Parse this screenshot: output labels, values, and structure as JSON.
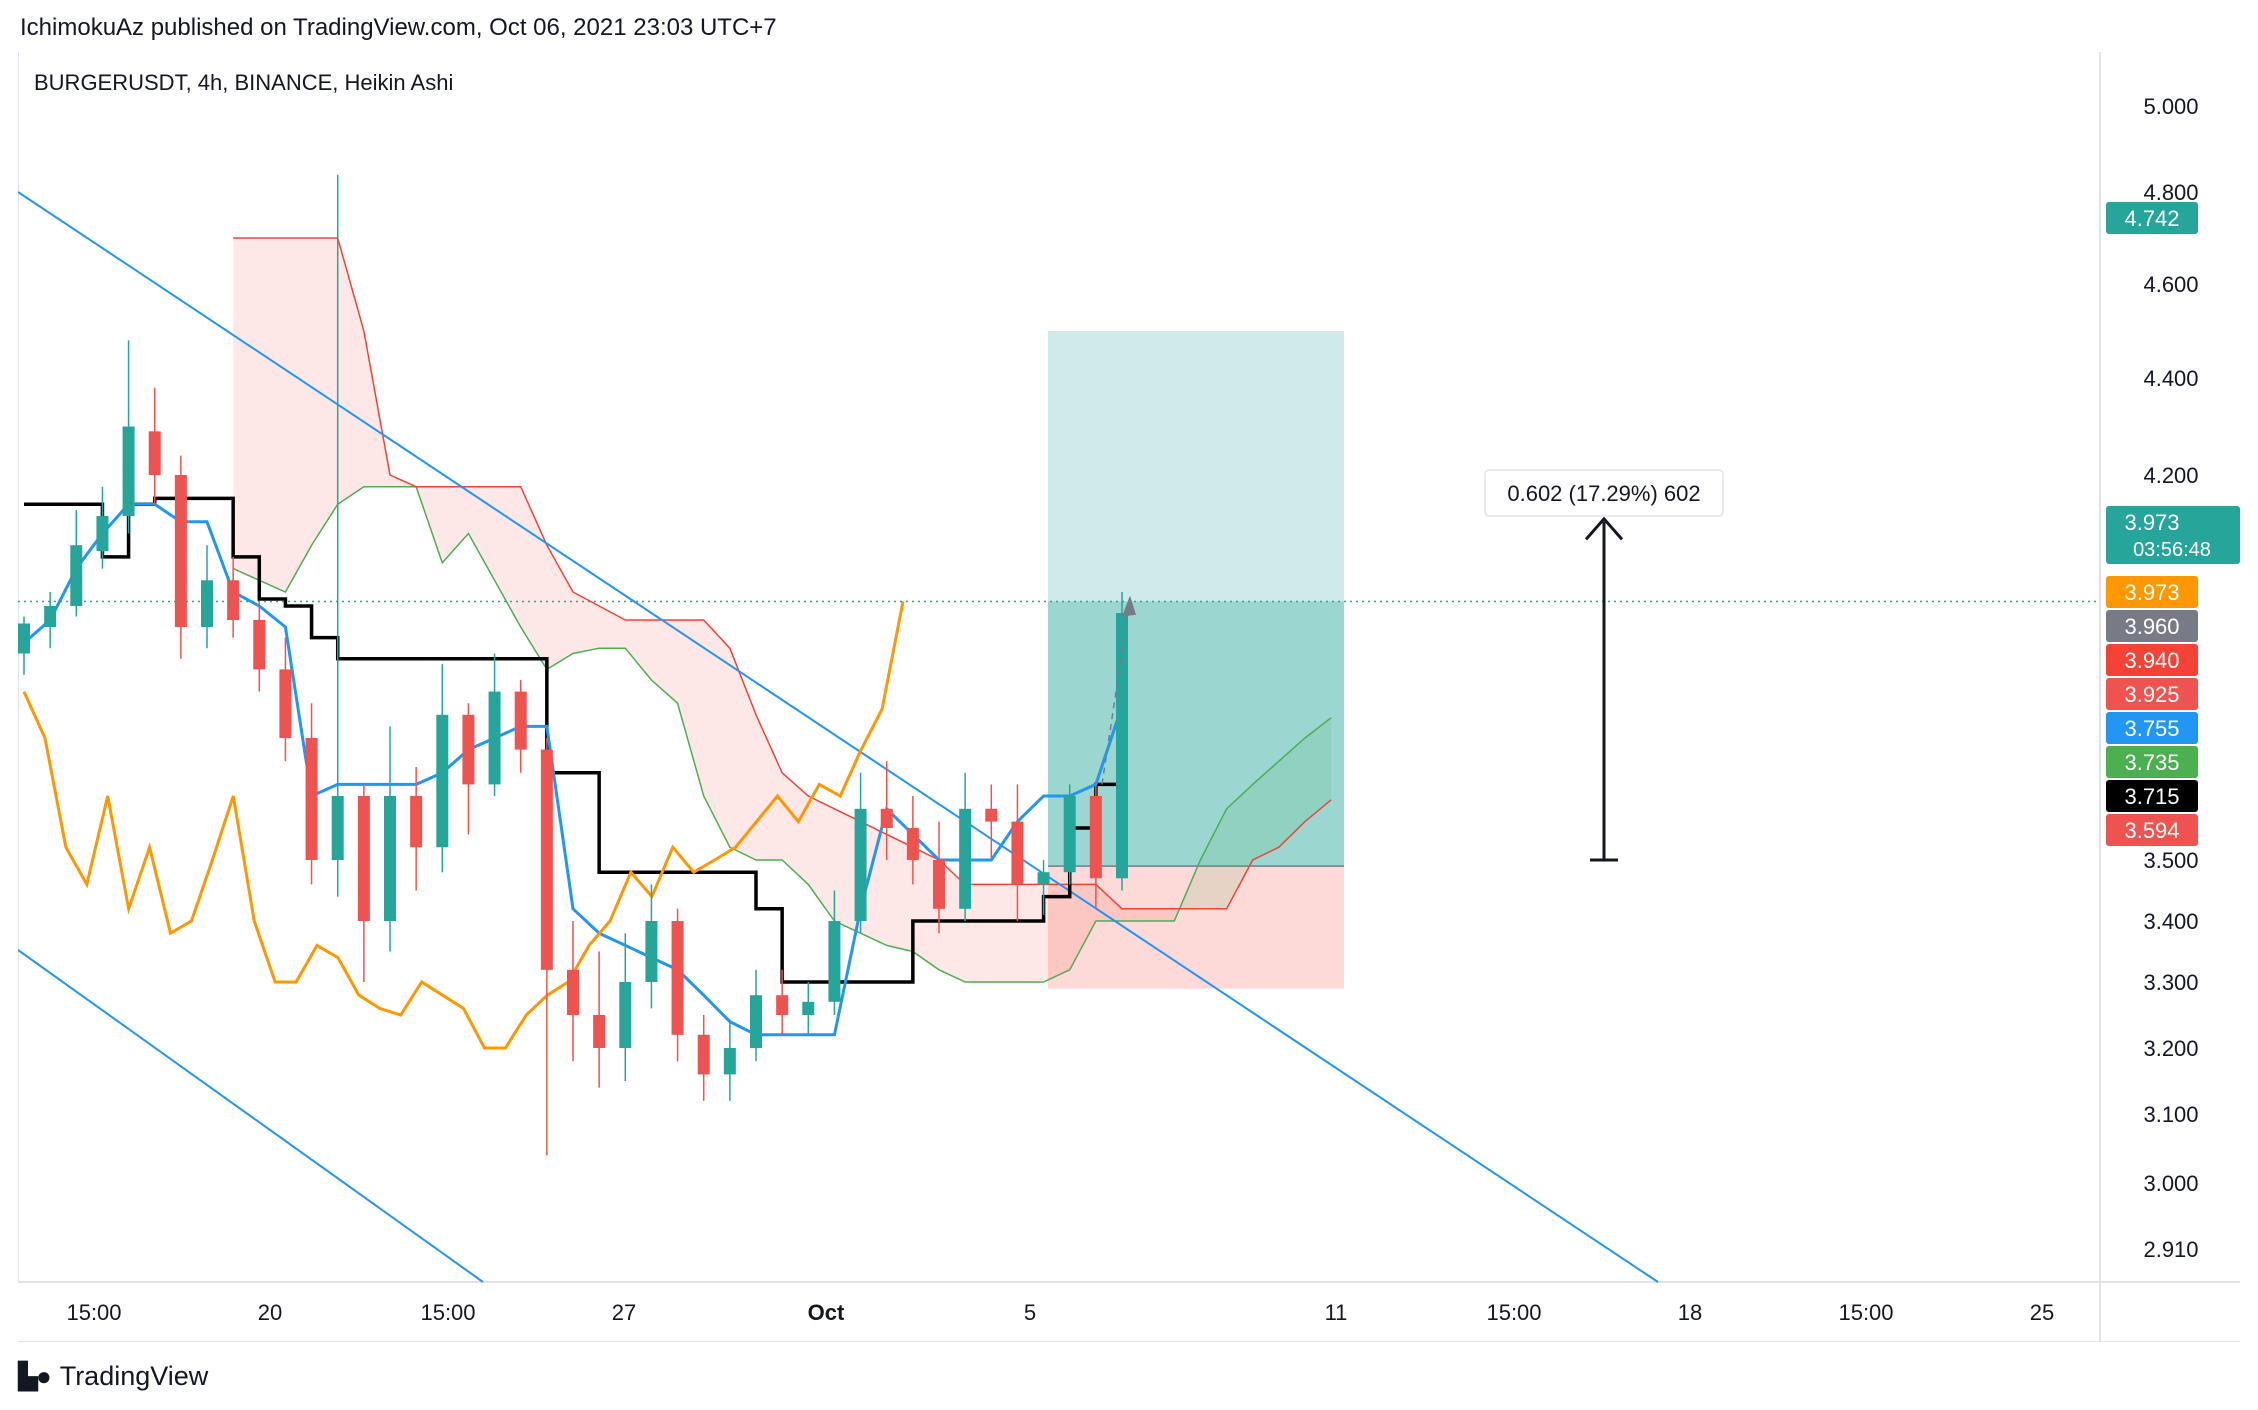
{
  "header": {
    "published": "IchimokuAz published on TradingView.com, Oct 06, 2021 23:03 UTC+7"
  },
  "footer": {
    "brand": "TradingView",
    "logo_icon": "tradingview-logo-icon"
  },
  "colors": {
    "up": "#26a69a",
    "down": "#ef5350",
    "tenkan": "#2196f3",
    "kijun": "#000000",
    "chikou": "#ff9800",
    "span_a": "#4caf50",
    "span_b": "#f44336",
    "trendline": "#2196f3",
    "target_zone": "#26a69a",
    "stop_zone": "#f44336"
  },
  "chart_data": {
    "type": "candlestick",
    "title": "BURGERUSDT, 4h, BINANCE, Heikin Ashi",
    "symbol": "BURGERUSDT",
    "interval": "4h",
    "exchange": "BINANCE",
    "style": "Heikin Ashi",
    "ylim": [
      2.85,
      5.1
    ],
    "y_ticks": [
      "5.000",
      "4.800",
      "4.600",
      "4.400",
      "4.200",
      "3.500",
      "3.400",
      "3.300",
      "3.200",
      "3.100",
      "3.000",
      "2.910"
    ],
    "x_ticks": [
      "15:00",
      "20",
      "15:00",
      "27",
      "Oct",
      "5",
      "11",
      "15:00",
      "18",
      "15:00",
      "25"
    ],
    "price_labels": [
      {
        "value": "4.742",
        "color": "#26a69a"
      },
      {
        "value": "3.973",
        "sub": "03:56:48",
        "color": "#26a69a"
      },
      {
        "value": "3.973",
        "color": "#ff9800"
      },
      {
        "value": "3.960",
        "color": "#787b86"
      },
      {
        "value": "3.940",
        "color": "#f44336"
      },
      {
        "value": "3.925",
        "color": "#ef5350"
      },
      {
        "value": "3.755",
        "color": "#2196f3"
      },
      {
        "value": "3.735",
        "color": "#4caf50"
      },
      {
        "value": "3.715",
        "color": "#000000"
      },
      {
        "value": "3.594",
        "color": "#ef5350"
      }
    ],
    "measure_label": "0.602 (17.29%) 602",
    "position": {
      "entry": 3.49,
      "target": 4.5,
      "stop": 3.29
    },
    "last_price": 3.973,
    "candles": [
      {
        "o": 3.85,
        "h": 3.93,
        "l": 3.81,
        "c": 3.91
      },
      {
        "o": 3.9,
        "h": 4.0,
        "l": 3.86,
        "c": 3.96
      },
      {
        "o": 3.96,
        "h": 4.14,
        "l": 3.93,
        "c": 4.08
      },
      {
        "o": 4.07,
        "h": 4.18,
        "l": 4.04,
        "c": 4.13
      },
      {
        "o": 4.13,
        "h": 4.48,
        "l": 4.1,
        "c": 4.3
      },
      {
        "o": 4.29,
        "h": 4.38,
        "l": 4.15,
        "c": 4.2
      },
      {
        "o": 4.2,
        "h": 4.24,
        "l": 3.84,
        "c": 3.9
      },
      {
        "o": 3.9,
        "h": 4.08,
        "l": 3.86,
        "c": 4.02
      },
      {
        "o": 4.02,
        "h": 4.06,
        "l": 3.88,
        "c": 3.92
      },
      {
        "o": 3.92,
        "h": 3.97,
        "l": 3.78,
        "c": 3.82
      },
      {
        "o": 3.82,
        "h": 3.88,
        "l": 3.66,
        "c": 3.7
      },
      {
        "o": 3.7,
        "h": 3.76,
        "l": 3.46,
        "c": 3.5
      },
      {
        "o": 3.5,
        "h": 4.84,
        "l": 3.44,
        "c": 3.6
      },
      {
        "o": 3.6,
        "h": 3.62,
        "l": 3.3,
        "c": 3.4
      },
      {
        "o": 3.4,
        "h": 3.72,
        "l": 3.35,
        "c": 3.6
      },
      {
        "o": 3.6,
        "h": 3.65,
        "l": 3.45,
        "c": 3.52
      },
      {
        "o": 3.52,
        "h": 3.83,
        "l": 3.48,
        "c": 3.74
      },
      {
        "o": 3.74,
        "h": 3.76,
        "l": 3.54,
        "c": 3.62
      },
      {
        "o": 3.62,
        "h": 3.85,
        "l": 3.6,
        "c": 3.78
      },
      {
        "o": 3.78,
        "h": 3.8,
        "l": 3.64,
        "c": 3.68
      },
      {
        "o": 3.68,
        "h": 3.7,
        "l": 3.04,
        "c": 3.32
      },
      {
        "o": 3.32,
        "h": 3.4,
        "l": 3.18,
        "c": 3.25
      },
      {
        "o": 3.25,
        "h": 3.35,
        "l": 3.14,
        "c": 3.2
      },
      {
        "o": 3.2,
        "h": 3.38,
        "l": 3.15,
        "c": 3.3
      },
      {
        "o": 3.3,
        "h": 3.46,
        "l": 3.26,
        "c": 3.4
      },
      {
        "o": 3.4,
        "h": 3.42,
        "l": 3.18,
        "c": 3.22
      },
      {
        "o": 3.22,
        "h": 3.25,
        "l": 3.12,
        "c": 3.16
      },
      {
        "o": 3.16,
        "h": 3.24,
        "l": 3.12,
        "c": 3.2
      },
      {
        "o": 3.2,
        "h": 3.32,
        "l": 3.18,
        "c": 3.28
      },
      {
        "o": 3.28,
        "h": 3.32,
        "l": 3.22,
        "c": 3.25
      },
      {
        "o": 3.25,
        "h": 3.3,
        "l": 3.22,
        "c": 3.27
      },
      {
        "o": 3.27,
        "h": 3.45,
        "l": 3.25,
        "c": 3.4
      },
      {
        "o": 3.4,
        "h": 3.64,
        "l": 3.38,
        "c": 3.58
      },
      {
        "o": 3.58,
        "h": 3.66,
        "l": 3.5,
        "c": 3.55
      },
      {
        "o": 3.55,
        "h": 3.6,
        "l": 3.46,
        "c": 3.5
      },
      {
        "o": 3.5,
        "h": 3.56,
        "l": 3.38,
        "c": 3.42
      },
      {
        "o": 3.42,
        "h": 3.64,
        "l": 3.4,
        "c": 3.58
      },
      {
        "o": 3.58,
        "h": 3.62,
        "l": 3.5,
        "c": 3.56
      },
      {
        "o": 3.56,
        "h": 3.62,
        "l": 3.4,
        "c": 3.46
      },
      {
        "o": 3.46,
        "h": 3.5,
        "l": 3.41,
        "c": 3.48
      },
      {
        "o": 3.48,
        "h": 3.62,
        "l": 3.46,
        "c": 3.6
      },
      {
        "o": 3.6,
        "h": 3.62,
        "l": 3.42,
        "c": 3.47
      },
      {
        "o": 3.47,
        "h": 4.0,
        "l": 3.45,
        "c": 3.94
      }
    ],
    "tenkan": [
      3.87,
      3.92,
      4.04,
      4.1,
      4.15,
      4.15,
      4.12,
      4.12,
      4.0,
      3.96,
      3.9,
      3.6,
      3.62,
      3.62,
      3.62,
      3.62,
      3.64,
      3.68,
      3.7,
      3.72,
      3.72,
      3.42,
      3.38,
      3.36,
      3.34,
      3.32,
      3.28,
      3.24,
      3.22,
      3.22,
      3.22,
      3.22,
      3.42,
      3.58,
      3.54,
      3.5,
      3.5,
      3.5,
      3.56,
      3.6,
      3.6,
      3.62,
      3.755
    ],
    "kijun": [
      4.15,
      4.15,
      4.15,
      4.06,
      4.15,
      4.16,
      4.16,
      4.16,
      4.06,
      3.98,
      3.96,
      3.88,
      3.84,
      3.84,
      3.84,
      3.84,
      3.84,
      3.84,
      3.84,
      3.84,
      3.64,
      3.64,
      3.48,
      3.48,
      3.48,
      3.48,
      3.48,
      3.48,
      3.42,
      3.3,
      3.3,
      3.3,
      3.3,
      3.3,
      3.4,
      3.4,
      3.4,
      3.4,
      3.4,
      3.44,
      3.55,
      3.62,
      3.715
    ],
    "chikou": [
      3.78,
      3.7,
      3.52,
      3.46,
      3.6,
      3.42,
      3.52,
      3.38,
      3.4,
      3.5,
      3.6,
      3.4,
      3.3,
      3.3,
      3.36,
      3.34,
      3.28,
      3.26,
      3.25,
      3.3,
      3.28,
      3.26,
      3.2,
      3.2,
      3.25,
      3.28,
      3.3,
      3.36,
      3.4,
      3.48,
      3.44,
      3.52,
      3.48,
      3.5,
      3.52,
      3.56,
      3.6,
      3.56,
      3.62,
      3.6,
      3.68,
      3.75,
      3.973
    ],
    "span_a": [
      4.04,
      4.02,
      4.0,
      4.08,
      4.15,
      4.18,
      4.18,
      4.18,
      4.05,
      4.1,
      4.02,
      3.9,
      3.82,
      3.85,
      3.86,
      3.86,
      3.8,
      3.76,
      3.6,
      3.52,
      3.5,
      3.5,
      3.46,
      3.4,
      3.38,
      3.36,
      3.35,
      3.32,
      3.3,
      3.3,
      3.3,
      3.3,
      3.32,
      3.4,
      3.4,
      3.4,
      3.4,
      3.5,
      3.58,
      3.62,
      3.66,
      3.7,
      3.735
    ],
    "span_b": [
      4.7,
      4.7,
      4.7,
      4.7,
      4.7,
      4.5,
      4.2,
      4.18,
      4.18,
      4.18,
      4.18,
      4.18,
      4.08,
      4.0,
      3.96,
      3.92,
      3.92,
      3.92,
      3.92,
      3.86,
      3.74,
      3.64,
      3.6,
      3.58,
      3.56,
      3.54,
      3.52,
      3.5,
      3.46,
      3.46,
      3.46,
      3.46,
      3.46,
      3.46,
      3.42,
      3.42,
      3.42,
      3.42,
      3.42,
      3.5,
      3.52,
      3.56,
      3.594
    ]
  }
}
